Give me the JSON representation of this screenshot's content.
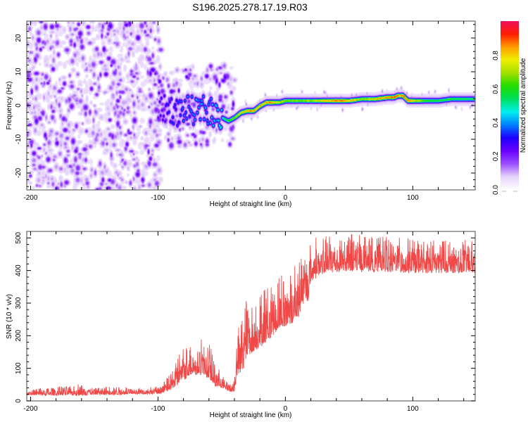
{
  "title": "S196.2025.278.17.19.R03",
  "chart_data": [
    {
      "type": "heatmap",
      "name": "spectrogram",
      "title": "S196.2025.278.17.19.R03",
      "xlabel": "Height of straight line (km)",
      "ylabel": "Frequency (Hz)",
      "xlim": [
        -203,
        149
      ],
      "ylim": [
        -25,
        25
      ],
      "xticks": [
        -200,
        -100,
        0,
        100
      ],
      "yticks": [
        -20,
        -10,
        0,
        10,
        20
      ],
      "colorbar": {
        "label": "Normalized spectral amplitude",
        "range": [
          0,
          1
        ],
        "ticks": [
          0.0,
          0.2,
          0.4,
          0.6,
          0.8
        ],
        "tick_labels": [
          "0.0",
          "0.2",
          "0.4",
          "0.6",
          "0.8"
        ],
        "colormap": [
          "#ffffff",
          "#e6d4fb",
          "#9b4dff",
          "#6a00ff",
          "#1f00ff",
          "#0080ff",
          "#00f0f0",
          "#00e060",
          "#22dd00",
          "#a0e000",
          "#f0f000",
          "#ffa000",
          "#ff2000",
          "#f0105a"
        ]
      },
      "noise_region_x": [
        -203,
        -100
      ],
      "signal_ridge": {
        "x": [
          -100,
          -95,
          -90,
          -85,
          -80,
          -75,
          -70,
          -65,
          -60,
          -55,
          -50,
          -45,
          -40,
          -35,
          -30,
          -25,
          -20,
          -15,
          -10,
          -5,
          0,
          10,
          20,
          30,
          40,
          50,
          60,
          70,
          80,
          85,
          88,
          92,
          96,
          100,
          110,
          120,
          130,
          140,
          149
        ],
        "frequency_hz": [
          0,
          -1,
          -1,
          -2,
          -1,
          -1,
          -2,
          -1,
          -1.5,
          -2.5,
          -3.5,
          -4.5,
          -3.5,
          -2,
          -1.5,
          -1.5,
          0,
          1,
          1,
          1,
          1.5,
          1.5,
          1.5,
          1.5,
          1.5,
          1.5,
          2,
          2,
          2.5,
          2.5,
          3,
          3,
          1.5,
          1.5,
          1.5,
          1.5,
          2,
          2,
          2
        ],
        "amplitude": [
          0.25,
          0.3,
          0.35,
          0.35,
          0.4,
          0.4,
          0.45,
          0.45,
          0.45,
          0.5,
          0.55,
          0.65,
          0.7,
          0.8,
          0.9,
          0.9,
          0.9,
          0.95,
          0.9,
          0.8,
          0.75,
          0.7,
          0.75,
          0.85,
          0.95,
          0.9,
          0.75,
          0.85,
          0.95,
          0.95,
          0.9,
          0.95,
          0.95,
          0.85,
          0.65,
          0.6,
          0.65,
          0.6,
          0.6
        ]
      }
    },
    {
      "type": "line",
      "name": "snr",
      "xlabel": "Height of straight line (km)",
      "ylabel": "SNR (10 * v/v)",
      "xlim": [
        -203,
        149
      ],
      "ylim": [
        0,
        520
      ],
      "xticks": [
        -200,
        -100,
        0,
        100
      ],
      "yticks": [
        0,
        100,
        200,
        300,
        400,
        500
      ],
      "line_color": "#ee3333",
      "series": [
        {
          "name": "SNR",
          "x": [
            -203,
            -190,
            -180,
            -170,
            -160,
            -150,
            -140,
            -130,
            -120,
            -110,
            -100,
            -95,
            -90,
            -85,
            -80,
            -75,
            -72,
            -70,
            -66,
            -63,
            -60,
            -55,
            -50,
            -45,
            -42,
            -40,
            -38,
            -35,
            -32,
            -30,
            -25,
            -20,
            -15,
            -10,
            -5,
            0,
            5,
            10,
            15,
            18,
            20,
            25,
            30,
            40,
            50,
            60,
            70,
            80,
            90,
            100,
            110,
            120,
            130,
            140,
            149
          ],
          "baseline": [
            20,
            20,
            20,
            21,
            21,
            22,
            22,
            22,
            23,
            23,
            24,
            30,
            40,
            60,
            75,
            90,
            100,
            85,
            95,
            90,
            75,
            55,
            45,
            35,
            30,
            35,
            90,
            110,
            140,
            150,
            170,
            180,
            200,
            220,
            240,
            250,
            260,
            280,
            320,
            330,
            380,
            395,
            405,
            410,
            412,
            410,
            410,
            410,
            408,
            405,
            405,
            405,
            405,
            405,
            405
          ],
          "peak": [
            35,
            40,
            45,
            45,
            55,
            40,
            45,
            45,
            42,
            40,
            45,
            60,
            90,
            140,
            160,
            175,
            200,
            150,
            205,
            160,
            180,
            120,
            80,
            60,
            60,
            100,
            180,
            290,
            370,
            300,
            300,
            320,
            360,
            350,
            380,
            410,
            420,
            450,
            440,
            500,
            500,
            505,
            505,
            510,
            515,
            510,
            505,
            505,
            505,
            500,
            495,
            495,
            495,
            495,
            490
          ]
        }
      ]
    }
  ]
}
